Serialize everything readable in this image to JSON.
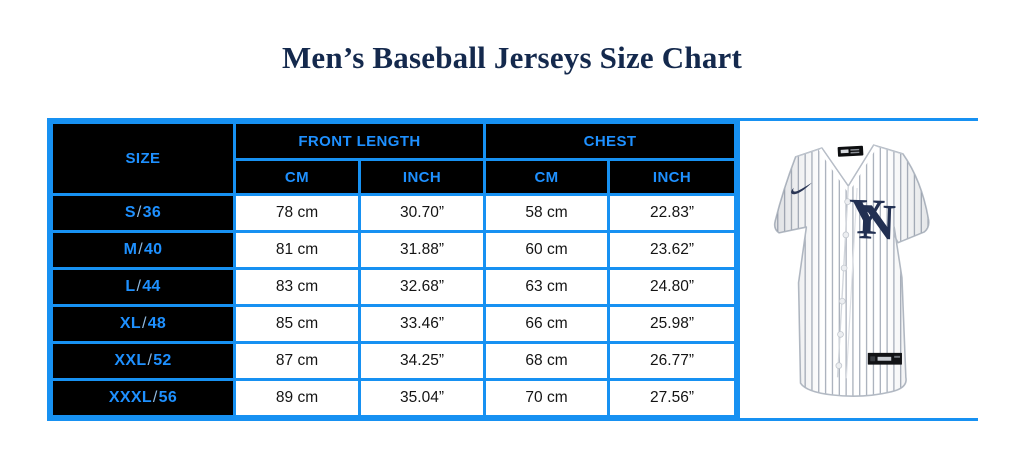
{
  "colors": {
    "accent_blue": "#1791F2",
    "header_text_blue": "#1E90FF",
    "title_navy": "#14294D",
    "header_bg": "#000000",
    "cell_text": "#141414",
    "logo_navy": "#223052"
  },
  "chart_data": {
    "type": "table",
    "title": "Men’s Baseball Jerseys Size Chart",
    "header": {
      "size_label": "SIZE",
      "groups": [
        {
          "label": "FRONT LENGTH",
          "sub": [
            "CM",
            "INCH"
          ]
        },
        {
          "label": "CHEST",
          "sub": [
            "CM",
            "INCH"
          ]
        }
      ]
    },
    "rows": [
      {
        "size": "S/36",
        "front_cm": "78 cm",
        "front_inch": "30.70”",
        "chest_cm": "58 cm",
        "chest_inch": "22.83”"
      },
      {
        "size": "M/40",
        "front_cm": "81 cm",
        "front_inch": "31.88”",
        "chest_cm": "60 cm",
        "chest_inch": "23.62”"
      },
      {
        "size": "L/44",
        "front_cm": "83 cm",
        "front_inch": "32.68”",
        "chest_cm": "63 cm",
        "chest_inch": "24.80”"
      },
      {
        "size": "XL/48",
        "front_cm": "85 cm",
        "front_inch": "33.46”",
        "chest_cm": "66 cm",
        "chest_inch": "25.98”"
      },
      {
        "size": "XXL/52",
        "front_cm": "87 cm",
        "front_inch": "34.25”",
        "chest_cm": "68 cm",
        "chest_inch": "26.77”"
      },
      {
        "size": "XXXL/56",
        "front_cm": "89 cm",
        "front_inch": "35.04”",
        "chest_cm": "70 cm",
        "chest_inch": "27.56”"
      }
    ]
  },
  "jersey": {
    "description": "New York Yankees white pinstripe baseball jersey",
    "monogram_letter_n": "N",
    "monogram_letter_y": "Y"
  }
}
